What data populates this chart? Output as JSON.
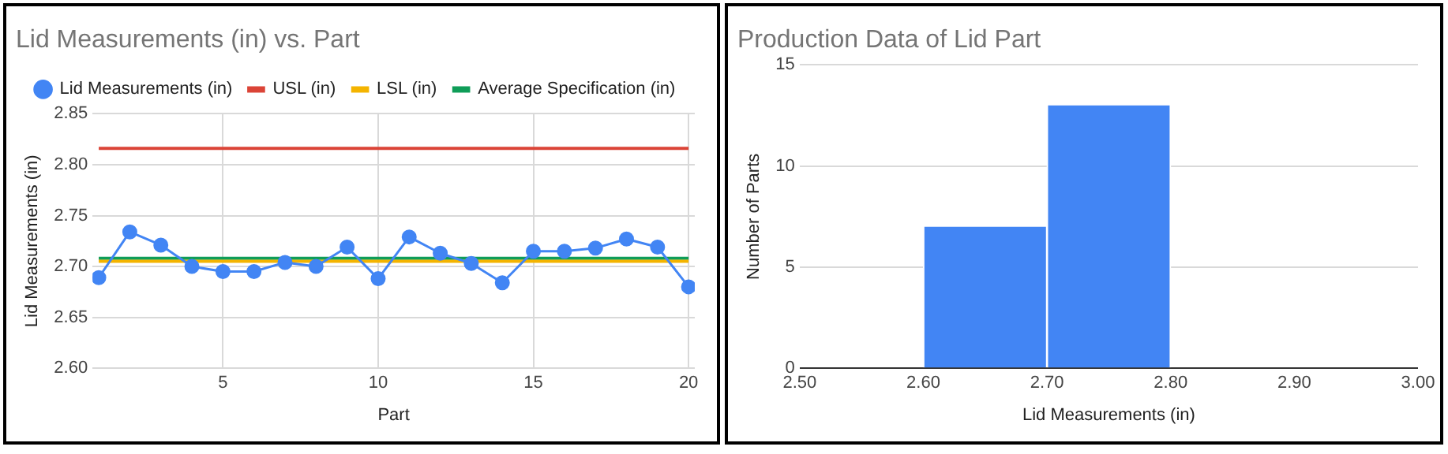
{
  "chart_data": [
    {
      "type": "line",
      "title": "Lid Measurements (in) vs. Part",
      "xlabel": "Part",
      "ylabel": "Lid Measurements (in)",
      "x": [
        1,
        2,
        3,
        4,
        5,
        6,
        7,
        8,
        9,
        10,
        11,
        12,
        13,
        14,
        15,
        16,
        17,
        18,
        19,
        20
      ],
      "series": [
        {
          "name": "Lid Measurements (in)",
          "color": "#4285f4",
          "marker": "circle",
          "values": [
            2.689,
            2.734,
            2.721,
            2.7,
            2.695,
            2.695,
            2.704,
            2.7,
            2.719,
            2.688,
            2.729,
            2.713,
            2.703,
            2.684,
            2.715,
            2.715,
            2.718,
            2.727,
            2.719,
            2.68
          ]
        },
        {
          "name": "USL (in)",
          "color": "#db4437",
          "marker": "none",
          "values": [
            2.816,
            2.816,
            2.816,
            2.816,
            2.816,
            2.816,
            2.816,
            2.816,
            2.816,
            2.816,
            2.816,
            2.816,
            2.816,
            2.816,
            2.816,
            2.816,
            2.816,
            2.816,
            2.816,
            2.816
          ]
        },
        {
          "name": "LSL (in)",
          "color": "#f4b400",
          "marker": "none",
          "values": [
            2.705,
            2.705,
            2.705,
            2.705,
            2.705,
            2.705,
            2.705,
            2.705,
            2.705,
            2.705,
            2.705,
            2.705,
            2.705,
            2.705,
            2.705,
            2.705,
            2.705,
            2.705,
            2.705,
            2.705
          ]
        },
        {
          "name": "Average Specification (in)",
          "color": "#0f9d58",
          "marker": "none",
          "values": [
            2.708,
            2.708,
            2.708,
            2.708,
            2.708,
            2.708,
            2.708,
            2.708,
            2.708,
            2.708,
            2.708,
            2.708,
            2.708,
            2.708,
            2.708,
            2.708,
            2.708,
            2.708,
            2.708,
            2.708
          ]
        }
      ],
      "xlim": [
        0.8,
        20.2
      ],
      "xticks": [
        5,
        10,
        15,
        20
      ],
      "ylim": [
        2.6,
        2.85
      ],
      "yticks": [
        {
          "value": 2.6,
          "label": "2.60"
        },
        {
          "value": 2.65,
          "label": "2.65"
        },
        {
          "value": 2.7,
          "label": "2.70"
        },
        {
          "value": 2.75,
          "label": "2.75"
        },
        {
          "value": 2.8,
          "label": "2.80"
        },
        {
          "value": 2.85,
          "label": "2.85"
        }
      ],
      "grid": true,
      "legend": "top"
    },
    {
      "type": "histogram",
      "title": "Production Data of Lid Part",
      "xlabel": "Lid Measurements (in)",
      "ylabel": "Number of Parts",
      "bins": [
        2.5,
        2.6,
        2.7,
        2.8,
        2.9,
        3.0
      ],
      "values": [
        0,
        7,
        13,
        0,
        0
      ],
      "color": "#4285f4",
      "xlim": [
        2.5,
        3.0
      ],
      "xticks": [
        {
          "value": 2.5,
          "label": "2.50"
        },
        {
          "value": 2.6,
          "label": "2.60"
        },
        {
          "value": 2.7,
          "label": "2.70"
        },
        {
          "value": 2.8,
          "label": "2.80"
        },
        {
          "value": 2.9,
          "label": "2.90"
        },
        {
          "value": 3.0,
          "label": "3.00"
        }
      ],
      "ylim": [
        0,
        15
      ],
      "yticks": [
        0,
        5,
        10,
        15
      ],
      "grid": "y"
    }
  ]
}
